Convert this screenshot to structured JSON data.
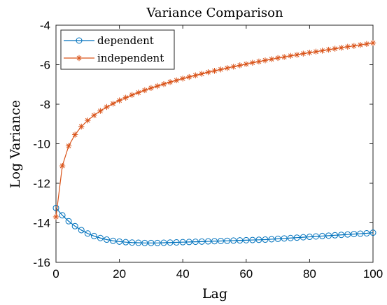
{
  "chart_data": {
    "type": "line",
    "title": "Variance Comparison",
    "xlabel": "Lag",
    "ylabel": "Log Variance",
    "xlim": [
      0,
      100
    ],
    "ylim": [
      -16,
      -4
    ],
    "xticks": [
      0,
      20,
      40,
      60,
      80,
      100
    ],
    "yticks": [
      -16,
      -14,
      -12,
      -10,
      -8,
      -6,
      -4
    ],
    "grid": false,
    "legend_position": "top-left",
    "x": [
      0,
      2,
      4,
      6,
      8,
      10,
      12,
      14,
      16,
      18,
      20,
      22,
      24,
      26,
      28,
      30,
      32,
      34,
      36,
      38,
      40,
      42,
      44,
      46,
      48,
      50,
      52,
      54,
      56,
      58,
      60,
      62,
      64,
      66,
      68,
      70,
      72,
      74,
      76,
      78,
      80,
      82,
      84,
      86,
      88,
      90,
      92,
      94,
      96,
      98,
      100
    ],
    "series": [
      {
        "name": "dependent",
        "color": "#0072BD",
        "marker": "circle",
        "values": [
          -13.25,
          -13.62,
          -13.92,
          -14.17,
          -14.37,
          -14.54,
          -14.67,
          -14.77,
          -14.85,
          -14.91,
          -14.95,
          -14.98,
          -15.0,
          -15.01,
          -15.02,
          -15.02,
          -15.02,
          -15.01,
          -15.0,
          -14.99,
          -14.98,
          -14.97,
          -14.96,
          -14.95,
          -14.94,
          -14.93,
          -14.92,
          -14.91,
          -14.9,
          -14.89,
          -14.88,
          -14.87,
          -14.86,
          -14.85,
          -14.83,
          -14.81,
          -14.79,
          -14.77,
          -14.75,
          -14.73,
          -14.71,
          -14.69,
          -14.67,
          -14.65,
          -14.63,
          -14.61,
          -14.59,
          -14.57,
          -14.55,
          -14.53,
          -14.5
        ]
      },
      {
        "name": "independent",
        "color": "#D95319",
        "marker": "star",
        "values": [
          -13.7,
          -11.12,
          -10.11,
          -9.54,
          -9.13,
          -8.82,
          -8.56,
          -8.34,
          -8.14,
          -7.97,
          -7.81,
          -7.67,
          -7.53,
          -7.41,
          -7.29,
          -7.18,
          -7.08,
          -6.98,
          -6.88,
          -6.79,
          -6.7,
          -6.62,
          -6.54,
          -6.46,
          -6.38,
          -6.31,
          -6.24,
          -6.17,
          -6.1,
          -6.03,
          -5.97,
          -5.9,
          -5.84,
          -5.78,
          -5.72,
          -5.66,
          -5.61,
          -5.55,
          -5.5,
          -5.44,
          -5.39,
          -5.34,
          -5.29,
          -5.24,
          -5.19,
          -5.14,
          -5.09,
          -5.05,
          -5.0,
          -4.95,
          -4.9
        ]
      }
    ]
  }
}
